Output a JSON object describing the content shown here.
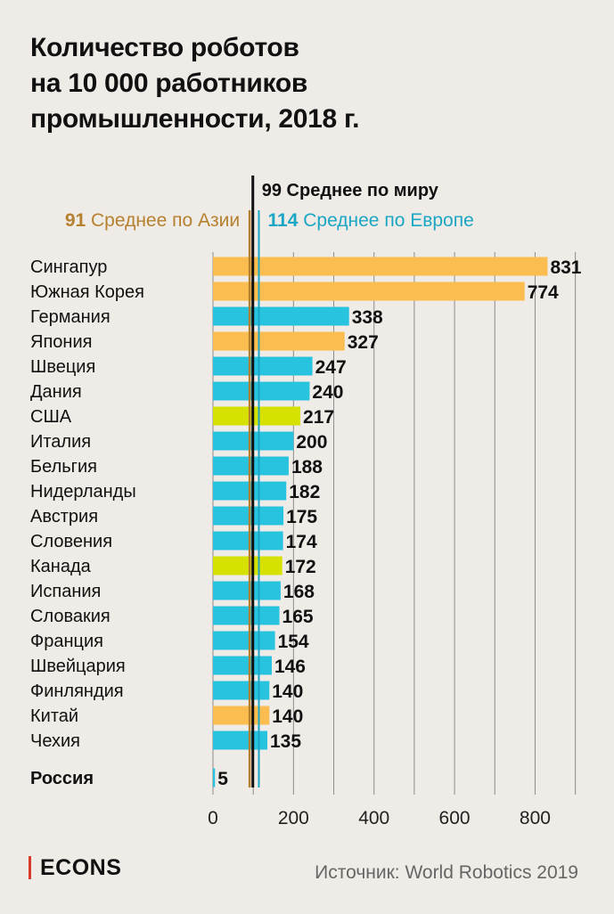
{
  "title": {
    "line1": "Количество роботов",
    "line2": "на 10 000 работников",
    "line3": "промышленности, 2018 г."
  },
  "brand": "ECONS",
  "source": "Источник: World Robotics 2019",
  "chart_data": {
    "type": "bar",
    "orientation": "horizontal",
    "categories": [
      "Сингапур",
      "Южная Корея",
      "Германия",
      "Япония",
      "Швеция",
      "Дания",
      "США",
      "Италия",
      "Бельгия",
      "Нидерланды",
      "Австрия",
      "Словения",
      "Канада",
      "Испания",
      "Словакия",
      "Франция",
      "Швейцария",
      "Финляндия",
      "Китай",
      "Чехия",
      "Россия"
    ],
    "values": [
      831,
      774,
      338,
      327,
      247,
      240,
      217,
      200,
      188,
      182,
      175,
      174,
      172,
      168,
      165,
      154,
      146,
      140,
      140,
      135,
      5
    ],
    "value_labels": [
      "831",
      "774",
      "338",
      "327",
      "247",
      "240",
      "217",
      "200",
      "188",
      "182",
      "175",
      "174",
      "172",
      "168",
      "165",
      "154",
      "146",
      "140",
      "140",
      "135",
      "5"
    ],
    "regions": [
      "asia",
      "asia",
      "europe",
      "asia",
      "europe",
      "europe",
      "america",
      "europe",
      "europe",
      "europe",
      "europe",
      "europe",
      "america",
      "europe",
      "europe",
      "europe",
      "europe",
      "europe",
      "asia",
      "europe",
      "europe"
    ],
    "highlighted": [
      "Россия"
    ],
    "region_colors": {
      "asia": "#fbbd4f",
      "europe": "#28c3df",
      "america": "#d6e100"
    },
    "reference_lines": [
      {
        "key": "asia",
        "value": 91,
        "value_label": "91",
        "label": "Среднее по Азии",
        "color": "#b5812f"
      },
      {
        "key": "world",
        "value": 99,
        "value_label": "99",
        "label": "Среднее по миру",
        "color": "#111111"
      },
      {
        "key": "europe",
        "value": 114,
        "value_label": "114",
        "label": "Среднее по Европе",
        "color": "#1aa6c4"
      }
    ],
    "xlim": [
      0,
      900
    ],
    "xticks": [
      0,
      200,
      400,
      600,
      800
    ],
    "xtick_labels": [
      "0",
      "200",
      "400",
      "600",
      "800"
    ],
    "grid": true,
    "xlabel": "",
    "ylabel": ""
  }
}
